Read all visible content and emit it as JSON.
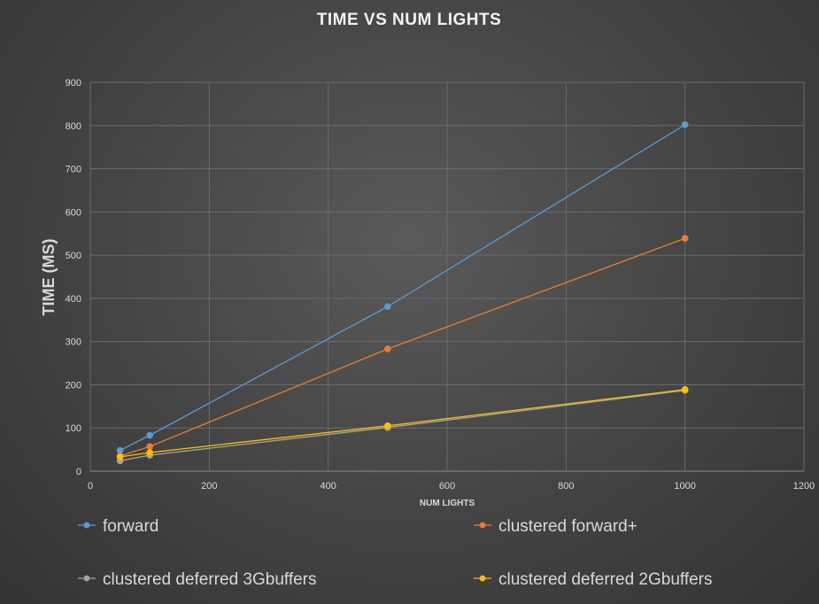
{
  "chart_data": {
    "type": "line",
    "title": "TIME VS NUM LIGHTS",
    "xlabel": "NUM LIGHTS",
    "ylabel": "TIME (MS)",
    "xlim": [
      0,
      1200
    ],
    "ylim": [
      0,
      900
    ],
    "x_ticks": [
      0,
      200,
      400,
      600,
      800,
      1000,
      1200
    ],
    "y_ticks": [
      0,
      100,
      200,
      300,
      400,
      500,
      600,
      700,
      800,
      900
    ],
    "grid": true,
    "legend_position": "bottom",
    "x": [
      50,
      100,
      500,
      1000
    ],
    "series": [
      {
        "name": "forward",
        "color": "#5b9bd5",
        "values": [
          48,
          83,
          381,
          802
        ]
      },
      {
        "name": "clustered forward+",
        "color": "#ed7d31",
        "values": [
          35,
          57,
          283,
          539
        ]
      },
      {
        "name": "clustered deferred 3Gbuffers",
        "color": "#a5a5a5",
        "values": [
          24,
          37,
          101,
          187
        ]
      },
      {
        "name": "clustered deferred 2Gbuffers",
        "color": "#ffc000",
        "values": [
          33,
          43,
          105,
          189
        ]
      }
    ]
  }
}
